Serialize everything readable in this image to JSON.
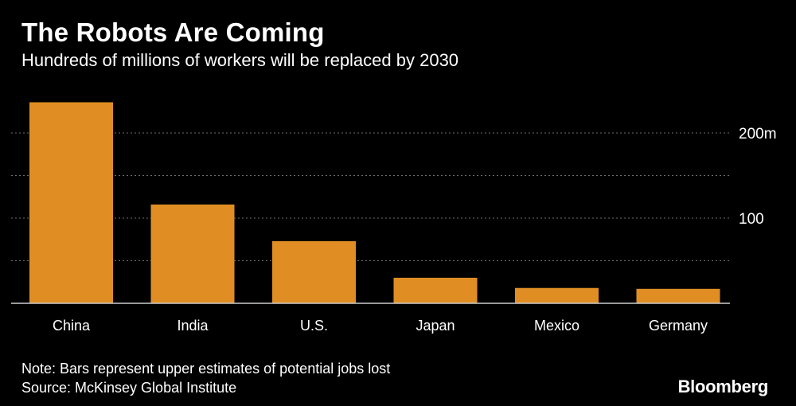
{
  "header": {
    "title": "The Robots Are Coming",
    "subtitle": "Hundreds of millions of workers will be replaced by 2030"
  },
  "chart_data": {
    "type": "bar",
    "categories": [
      "China",
      "India",
      "U.S.",
      "Japan",
      "Mexico",
      "Germany"
    ],
    "values": [
      236,
      116,
      73,
      30,
      18,
      17
    ],
    "ylim": [
      0,
      250
    ],
    "yticks": [
      {
        "value": 100,
        "label": "100"
      },
      {
        "value": 200,
        "label": "200m"
      }
    ],
    "gridlines": [
      50,
      100,
      150,
      200
    ],
    "grid": true,
    "bar_color": "#e08e24",
    "axis_position": "right"
  },
  "footer": {
    "note": "Note: Bars represent upper estimates of potential jobs lost",
    "source": "Source: McKinsey Global Institute"
  },
  "brand": "Bloomberg"
}
